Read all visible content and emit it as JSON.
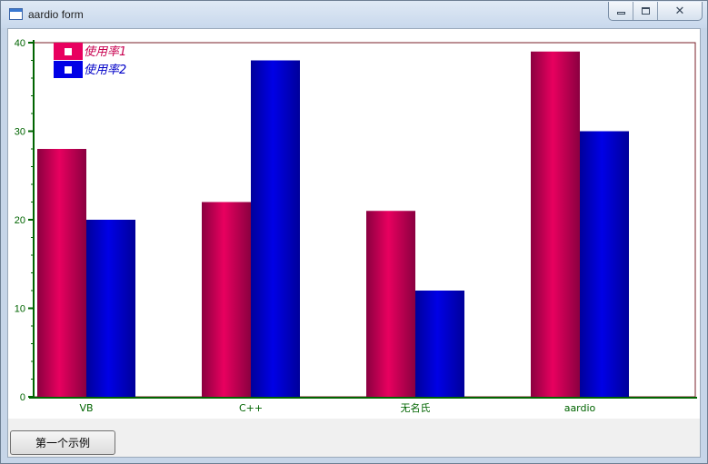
{
  "window": {
    "title": "aardio form",
    "controls": {
      "minimize_icon": "minimize-icon",
      "maximize_icon": "maximize-icon",
      "close_icon": "close-icon"
    }
  },
  "button": {
    "label": "第一个示例"
  },
  "colors": {
    "series1": "#e8005f",
    "series2": "#0000e6",
    "axis": "#006400",
    "frame": "#7a1f2a"
  },
  "chart_data": {
    "type": "bar",
    "categories": [
      "VB",
      "C++",
      "无名氏",
      "aardio"
    ],
    "series": [
      {
        "name": "使用率1",
        "values": [
          28,
          22,
          21,
          39
        ]
      },
      {
        "name": "使用率2",
        "values": [
          20,
          38,
          12,
          30
        ]
      }
    ],
    "ylim": [
      0,
      40
    ],
    "yticks": [
      "0",
      "10",
      "20",
      "30",
      "40"
    ],
    "legend": "top-left",
    "grid": false
  }
}
